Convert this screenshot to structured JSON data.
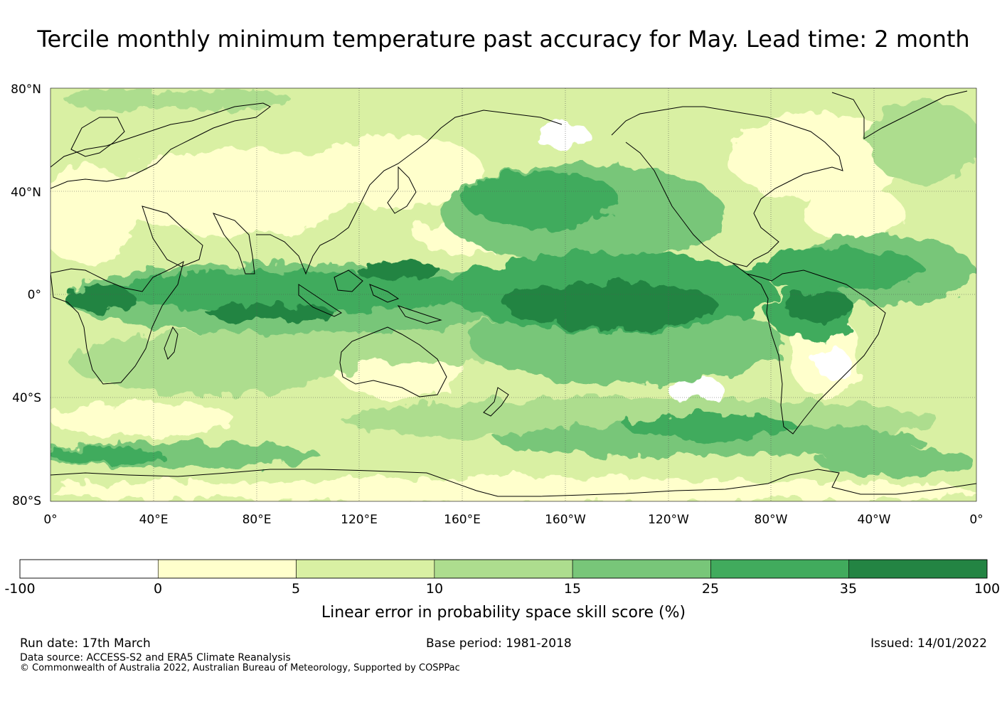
{
  "title": "Tercile monthly minimum temperature past accuracy for May. Lead time: 2 month",
  "map": {
    "lat_labels": [
      "80°N",
      "40°N",
      "0°",
      "40°S",
      "80°S"
    ],
    "lon_labels": [
      "0°",
      "40°E",
      "80°E",
      "120°E",
      "160°E",
      "160°W",
      "120°W",
      "80°W",
      "40°W",
      "0°"
    ],
    "colors": {
      "negative": "#ffffff",
      "0-5": "#ffffcc",
      "5-10": "#d9f0a3",
      "10-15": "#addd8e",
      "15-25": "#78c679",
      "25-35": "#41ab5d",
      "35-100": "#238443",
      "coastline": "#000000"
    }
  },
  "colorbar": {
    "ticks": [
      "-100",
      "0",
      "5",
      "10",
      "15",
      "25",
      "35",
      "100"
    ],
    "colors": [
      "#ffffff",
      "#ffffcc",
      "#d9f0a3",
      "#addd8e",
      "#78c679",
      "#41ab5d",
      "#238443"
    ],
    "label": "Linear error in probability space skill score (%)"
  },
  "footer": {
    "run_date": "Run date: 17th March",
    "base_period": "Base period: 1981-2018",
    "issued": "Issued: 14/01/2022",
    "data_source": "Data source: ACCESS-S2 and ERA5 Climate Reanalysis",
    "copyright": "© Commonwealth of Australia 2022, Australian Bureau of Meteorology, Supported by COSPPac"
  }
}
